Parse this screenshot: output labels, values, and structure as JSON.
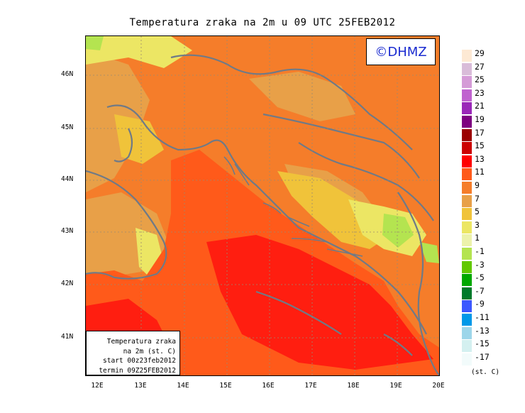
{
  "title": "Temperatura zraka na 2m u 09 UTC 25FEB2012",
  "copyright": "©DHMZ",
  "info_lines": [
    "Temperatura zraka",
    "na 2m (st. C)",
    "start 00z23feb2012",
    "termin 09Z25FEB2012"
  ],
  "lat_ticks": [
    "46N",
    "45N",
    "44N",
    "43N",
    "42N",
    "41N"
  ],
  "lon_ticks": [
    "12E",
    "13E",
    "14E",
    "15E",
    "16E",
    "17E",
    "18E",
    "19E",
    "20E"
  ],
  "legend": {
    "labels": [
      "29",
      "27",
      "25",
      "23",
      "21",
      "19",
      "17",
      "15",
      "13",
      "11",
      "9",
      "7",
      "5",
      "3",
      "1",
      "-1",
      "-3",
      "-5",
      "-7",
      "-9",
      "-11",
      "-13",
      "-15",
      "-17"
    ],
    "colors": [
      "#fde9d4",
      "#d9bcd9",
      "#d59bd7",
      "#c063cf",
      "#9a28b8",
      "#7d0080",
      "#9b0000",
      "#cc0000",
      "#ff0000",
      "#ff5a1a",
      "#f57d2a",
      "#e8a048",
      "#f0c33a",
      "#ece664",
      "#ecf2ab",
      "#b4e450",
      "#62c800",
      "#00a800",
      "#007a2a",
      "#3c58ff",
      "#0098e8",
      "#9dd6ea",
      "#d4f0f0",
      "#f2fbfb"
    ],
    "unit": "(st. C)"
  },
  "colors": {
    "sea_warm": "#ff1e10",
    "sea": "#ff5a1a",
    "land": "#f57d2a",
    "land_mild": "#e8a048",
    "land_cool": "#f0c33a",
    "land_cold": "#ece664",
    "snow": "#b4e450",
    "coast_line": "#6f7a87",
    "copyright_text": "#1a2bd0"
  }
}
